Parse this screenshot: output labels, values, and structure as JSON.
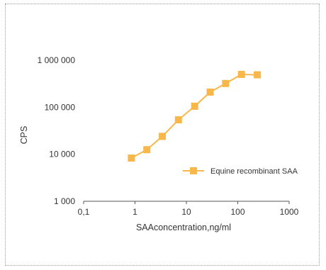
{
  "chart_data": {
    "type": "scatter",
    "xlabel": "SAAconcentration,ng/ml",
    "ylabel": "CPS",
    "x_scale": "log",
    "y_scale": "log",
    "xlim": [
      0.1,
      1000
    ],
    "ylim": [
      1000,
      1000000
    ],
    "x_ticks": [
      {
        "value": 0.1,
        "label": "0,1"
      },
      {
        "value": 1,
        "label": "1"
      },
      {
        "value": 10,
        "label": "10"
      },
      {
        "value": 100,
        "label": "100"
      },
      {
        "value": 1000,
        "label": "1000"
      }
    ],
    "y_ticks": [
      {
        "value": 1000,
        "label": "1 000"
      },
      {
        "value": 10000,
        "label": "10 000"
      },
      {
        "value": 100000,
        "label": "100 000"
      },
      {
        "value": 1000000,
        "label": "1 000 000"
      }
    ],
    "grid": false,
    "legend_position": "center-right",
    "series": [
      {
        "name": "Equine recombinant SAA",
        "color": "#f8b74a",
        "marker": "square",
        "connected": true,
        "points": [
          {
            "x": 0.85,
            "y": 8300
          },
          {
            "x": 1.7,
            "y": 12500
          },
          {
            "x": 3.4,
            "y": 24000
          },
          {
            "x": 7.0,
            "y": 54000
          },
          {
            "x": 14.5,
            "y": 105000
          },
          {
            "x": 29,
            "y": 210000
          },
          {
            "x": 58,
            "y": 320000
          },
          {
            "x": 118,
            "y": 500000
          },
          {
            "x": 240,
            "y": 490000
          }
        ]
      }
    ]
  }
}
